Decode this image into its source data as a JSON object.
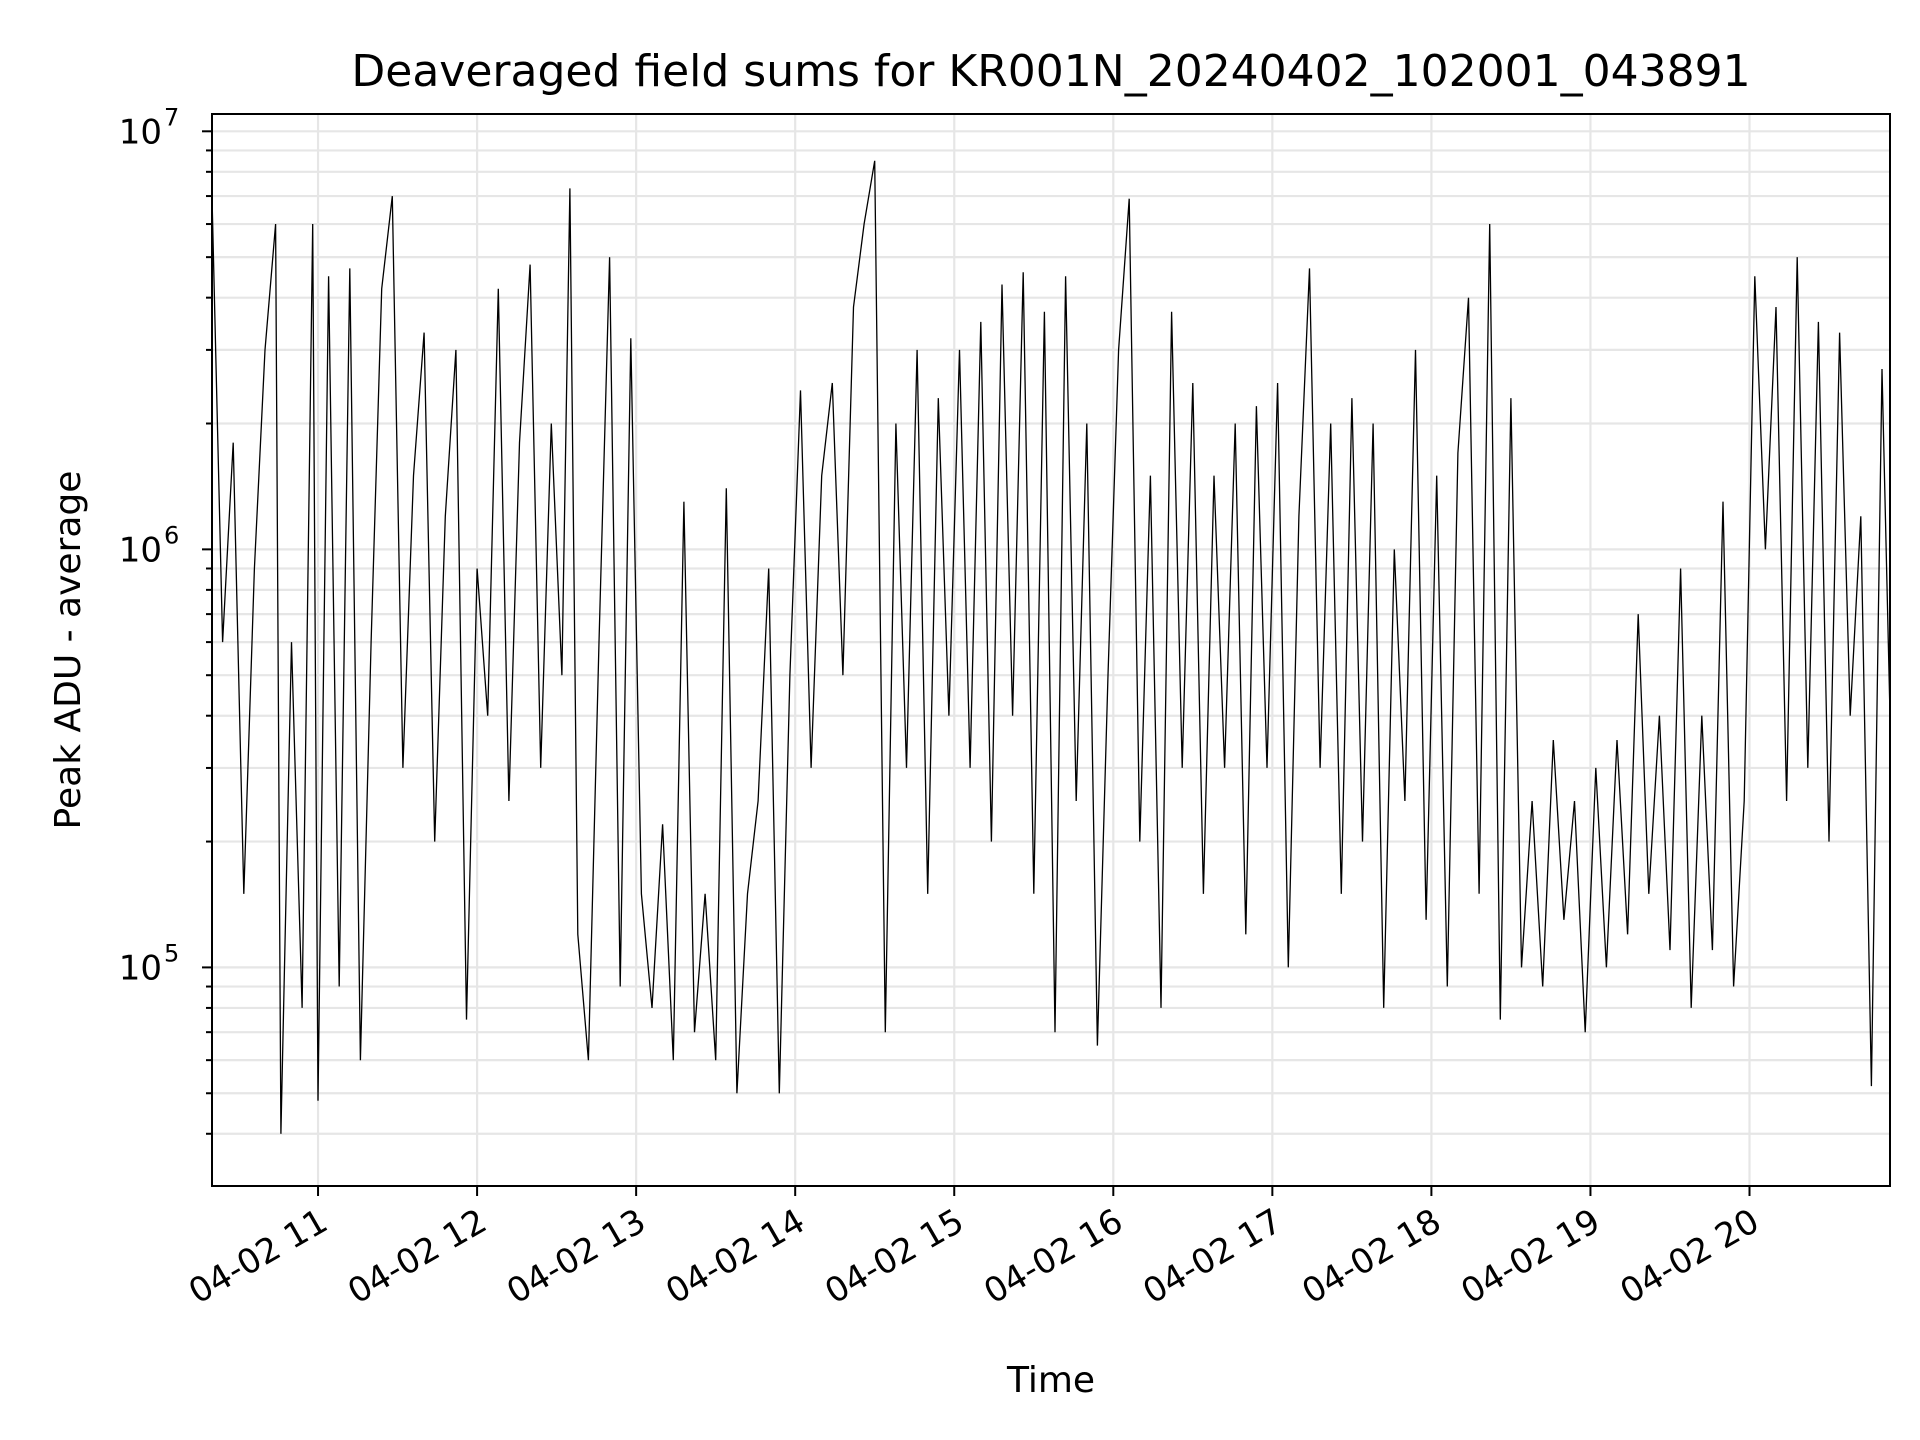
{
  "chart_data": {
    "type": "line",
    "title": "Deaveraged field sums for KR001N_20240402_102001_043891",
    "xlabel": "Time",
    "ylabel": "Peak ADU - average",
    "yscale": "log",
    "ylim": [
      30000,
      11000000
    ],
    "xlim": [
      "2024-04-02 10:20",
      "2024-04-02 20:53"
    ],
    "grid": true,
    "x_ticks": [
      {
        "value": "2024-04-02 11:00",
        "label": "04-02 11"
      },
      {
        "value": "2024-04-02 12:00",
        "label": "04-02 12"
      },
      {
        "value": "2024-04-02 13:00",
        "label": "04-02 13"
      },
      {
        "value": "2024-04-02 14:00",
        "label": "04-02 14"
      },
      {
        "value": "2024-04-02 15:00",
        "label": "04-02 15"
      },
      {
        "value": "2024-04-02 16:00",
        "label": "04-02 16"
      },
      {
        "value": "2024-04-02 17:00",
        "label": "04-02 17"
      },
      {
        "value": "2024-04-02 18:00",
        "label": "04-02 18"
      },
      {
        "value": "2024-04-02 19:00",
        "label": "04-02 19"
      },
      {
        "value": "2024-04-02 20:00",
        "label": "04-02 20"
      }
    ],
    "y_ticks": [
      {
        "value": 100000,
        "base": "10",
        "exp": "5"
      },
      {
        "value": 1000000,
        "base": "10",
        "exp": "6"
      },
      {
        "value": 10000000,
        "base": "10",
        "exp": "7"
      }
    ],
    "series": [
      {
        "color": "#000000",
        "points": [
          [
            "2024-04-02 10:20",
            7000000
          ],
          [
            "2024-04-02 10:24",
            600000
          ],
          [
            "2024-04-02 10:28",
            1800000
          ],
          [
            "2024-04-02 10:32",
            150000
          ],
          [
            "2024-04-02 10:36",
            900000
          ],
          [
            "2024-04-02 10:40",
            3000000
          ],
          [
            "2024-04-02 10:44",
            6000000
          ],
          [
            "2024-04-02 10:46",
            40000
          ],
          [
            "2024-04-02 10:50",
            600000
          ],
          [
            "2024-04-02 10:54",
            80000
          ],
          [
            "2024-04-02 10:58",
            6000000
          ],
          [
            "2024-04-02 11:00",
            48000
          ],
          [
            "2024-04-02 11:04",
            4500000
          ],
          [
            "2024-04-02 11:08",
            90000
          ],
          [
            "2024-04-02 11:12",
            4700000
          ],
          [
            "2024-04-02 11:16",
            60000
          ],
          [
            "2024-04-02 11:20",
            600000
          ],
          [
            "2024-04-02 11:24",
            4200000
          ],
          [
            "2024-04-02 11:28",
            7000000
          ],
          [
            "2024-04-02 11:32",
            300000
          ],
          [
            "2024-04-02 11:36",
            1500000
          ],
          [
            "2024-04-02 11:40",
            3300000
          ],
          [
            "2024-04-02 11:44",
            200000
          ],
          [
            "2024-04-02 11:48",
            1200000
          ],
          [
            "2024-04-02 11:52",
            3000000
          ],
          [
            "2024-04-02 11:56",
            75000
          ],
          [
            "2024-04-02 12:00",
            900000
          ],
          [
            "2024-04-02 12:04",
            400000
          ],
          [
            "2024-04-02 12:08",
            4200000
          ],
          [
            "2024-04-02 12:12",
            250000
          ],
          [
            "2024-04-02 12:16",
            1800000
          ],
          [
            "2024-04-02 12:20",
            4800000
          ],
          [
            "2024-04-02 12:24",
            300000
          ],
          [
            "2024-04-02 12:28",
            2000000
          ],
          [
            "2024-04-02 12:32",
            500000
          ],
          [
            "2024-04-02 12:35",
            7300000
          ],
          [
            "2024-04-02 12:38",
            120000
          ],
          [
            "2024-04-02 12:42",
            60000
          ],
          [
            "2024-04-02 12:46",
            600000
          ],
          [
            "2024-04-02 12:50",
            5000000
          ],
          [
            "2024-04-02 12:54",
            90000
          ],
          [
            "2024-04-02 12:58",
            3200000
          ],
          [
            "2024-04-02 13:02",
            150000
          ],
          [
            "2024-04-02 13:06",
            80000
          ],
          [
            "2024-04-02 13:10",
            220000
          ],
          [
            "2024-04-02 13:14",
            60000
          ],
          [
            "2024-04-02 13:18",
            1300000
          ],
          [
            "2024-04-02 13:22",
            70000
          ],
          [
            "2024-04-02 13:26",
            150000
          ],
          [
            "2024-04-02 13:30",
            60000
          ],
          [
            "2024-04-02 13:34",
            1400000
          ],
          [
            "2024-04-02 13:38",
            50000
          ],
          [
            "2024-04-02 13:42",
            150000
          ],
          [
            "2024-04-02 13:46",
            250000
          ],
          [
            "2024-04-02 13:50",
            900000
          ],
          [
            "2024-04-02 13:54",
            50000
          ],
          [
            "2024-04-02 13:58",
            500000
          ],
          [
            "2024-04-02 14:02",
            2400000
          ],
          [
            "2024-04-02 14:06",
            300000
          ],
          [
            "2024-04-02 14:10",
            1500000
          ],
          [
            "2024-04-02 14:14",
            2500000
          ],
          [
            "2024-04-02 14:18",
            500000
          ],
          [
            "2024-04-02 14:22",
            3800000
          ],
          [
            "2024-04-02 14:26",
            6000000
          ],
          [
            "2024-04-02 14:30",
            8500000
          ],
          [
            "2024-04-02 14:34",
            70000
          ],
          [
            "2024-04-02 14:38",
            2000000
          ],
          [
            "2024-04-02 14:42",
            300000
          ],
          [
            "2024-04-02 14:46",
            3000000
          ],
          [
            "2024-04-02 14:50",
            150000
          ],
          [
            "2024-04-02 14:54",
            2300000
          ],
          [
            "2024-04-02 14:58",
            400000
          ],
          [
            "2024-04-02 15:02",
            3000000
          ],
          [
            "2024-04-02 15:06",
            300000
          ],
          [
            "2024-04-02 15:10",
            3500000
          ],
          [
            "2024-04-02 15:14",
            200000
          ],
          [
            "2024-04-02 15:18",
            4300000
          ],
          [
            "2024-04-02 15:22",
            400000
          ],
          [
            "2024-04-02 15:26",
            4600000
          ],
          [
            "2024-04-02 15:30",
            150000
          ],
          [
            "2024-04-02 15:34",
            3700000
          ],
          [
            "2024-04-02 15:38",
            70000
          ],
          [
            "2024-04-02 15:42",
            4500000
          ],
          [
            "2024-04-02 15:46",
            250000
          ],
          [
            "2024-04-02 15:50",
            2000000
          ],
          [
            "2024-04-02 15:54",
            65000
          ],
          [
            "2024-04-02 15:58",
            500000
          ],
          [
            "2024-04-02 16:02",
            3000000
          ],
          [
            "2024-04-02 16:06",
            6900000
          ],
          [
            "2024-04-02 16:10",
            200000
          ],
          [
            "2024-04-02 16:14",
            1500000
          ],
          [
            "2024-04-02 16:18",
            80000
          ],
          [
            "2024-04-02 16:22",
            3700000
          ],
          [
            "2024-04-02 16:26",
            300000
          ],
          [
            "2024-04-02 16:30",
            2500000
          ],
          [
            "2024-04-02 16:34",
            150000
          ],
          [
            "2024-04-02 16:38",
            1500000
          ],
          [
            "2024-04-02 16:42",
            300000
          ],
          [
            "2024-04-02 16:46",
            2000000
          ],
          [
            "2024-04-02 16:50",
            120000
          ],
          [
            "2024-04-02 16:54",
            2200000
          ],
          [
            "2024-04-02 16:58",
            300000
          ],
          [
            "2024-04-02 17:02",
            2500000
          ],
          [
            "2024-04-02 17:06",
            100000
          ],
          [
            "2024-04-02 17:10",
            1200000
          ],
          [
            "2024-04-02 17:14",
            4700000
          ],
          [
            "2024-04-02 17:18",
            300000
          ],
          [
            "2024-04-02 17:22",
            2000000
          ],
          [
            "2024-04-02 17:26",
            150000
          ],
          [
            "2024-04-02 17:30",
            2300000
          ],
          [
            "2024-04-02 17:34",
            200000
          ],
          [
            "2024-04-02 17:38",
            2000000
          ],
          [
            "2024-04-02 17:42",
            80000
          ],
          [
            "2024-04-02 17:46",
            1000000
          ],
          [
            "2024-04-02 17:50",
            250000
          ],
          [
            "2024-04-02 17:54",
            3000000
          ],
          [
            "2024-04-02 17:58",
            130000
          ],
          [
            "2024-04-02 18:02",
            1500000
          ],
          [
            "2024-04-02 18:06",
            90000
          ],
          [
            "2024-04-02 18:10",
            1700000
          ],
          [
            "2024-04-02 18:14",
            4000000
          ],
          [
            "2024-04-02 18:18",
            150000
          ],
          [
            "2024-04-02 18:22",
            6000000
          ],
          [
            "2024-04-02 18:26",
            75000
          ],
          [
            "2024-04-02 18:30",
            2300000
          ],
          [
            "2024-04-02 18:34",
            100000
          ],
          [
            "2024-04-02 18:38",
            250000
          ],
          [
            "2024-04-02 18:42",
            90000
          ],
          [
            "2024-04-02 18:46",
            350000
          ],
          [
            "2024-04-02 18:50",
            130000
          ],
          [
            "2024-04-02 18:54",
            250000
          ],
          [
            "2024-04-02 18:58",
            70000
          ],
          [
            "2024-04-02 19:02",
            300000
          ],
          [
            "2024-04-02 19:06",
            100000
          ],
          [
            "2024-04-02 19:10",
            350000
          ],
          [
            "2024-04-02 19:14",
            120000
          ],
          [
            "2024-04-02 19:18",
            700000
          ],
          [
            "2024-04-02 19:22",
            150000
          ],
          [
            "2024-04-02 19:26",
            400000
          ],
          [
            "2024-04-02 19:30",
            110000
          ],
          [
            "2024-04-02 19:34",
            900000
          ],
          [
            "2024-04-02 19:38",
            80000
          ],
          [
            "2024-04-02 19:42",
            400000
          ],
          [
            "2024-04-02 19:46",
            110000
          ],
          [
            "2024-04-02 19:50",
            1300000
          ],
          [
            "2024-04-02 19:54",
            90000
          ],
          [
            "2024-04-02 19:58",
            250000
          ],
          [
            "2024-04-02 20:02",
            4500000
          ],
          [
            "2024-04-02 20:06",
            1000000
          ],
          [
            "2024-04-02 20:10",
            3800000
          ],
          [
            "2024-04-02 20:14",
            250000
          ],
          [
            "2024-04-02 20:18",
            5000000
          ],
          [
            "2024-04-02 20:22",
            300000
          ],
          [
            "2024-04-02 20:26",
            3500000
          ],
          [
            "2024-04-02 20:30",
            200000
          ],
          [
            "2024-04-02 20:34",
            3300000
          ],
          [
            "2024-04-02 20:38",
            400000
          ],
          [
            "2024-04-02 20:42",
            1200000
          ],
          [
            "2024-04-02 20:46",
            52000
          ],
          [
            "2024-04-02 20:50",
            2700000
          ],
          [
            "2024-04-02 20:53",
            400000
          ]
        ]
      }
    ]
  }
}
